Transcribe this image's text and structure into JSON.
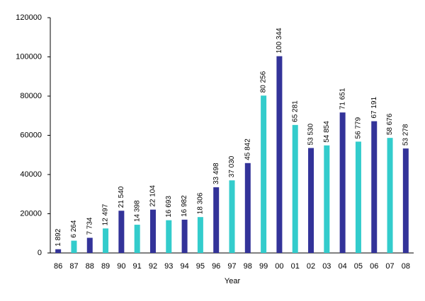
{
  "chart_data": {
    "type": "bar",
    "x_label": "Year",
    "categories": [
      "86",
      "87",
      "88",
      "89",
      "90",
      "91",
      "92",
      "93",
      "94",
      "95",
      "96",
      "97",
      "98",
      "99",
      "00",
      "01",
      "02",
      "03",
      "04",
      "05",
      "06",
      "07",
      "08"
    ],
    "values": [
      1892,
      6264,
      7734,
      12497,
      21540,
      14398,
      22104,
      16693,
      16982,
      18306,
      33498,
      37030,
      45842,
      80256,
      100344,
      65281,
      53530,
      54854,
      71651,
      56779,
      67191,
      58676,
      53278
    ],
    "value_labels": [
      "1 892",
      "6 264",
      "7 734",
      "12 497",
      "21 540",
      "14 398",
      "22 104",
      "16 693",
      "16 982",
      "18 306",
      "33 498",
      "37 030",
      "45 842",
      "80 256",
      "100 344",
      "65 281",
      "53 530",
      "54 854",
      "71 651",
      "56 779",
      "67 191",
      "58 676",
      "53 278"
    ],
    "colors": [
      "#333399",
      "#33cccc",
      "#333399",
      "#33cccc",
      "#333399",
      "#33cccc",
      "#333399",
      "#33cccc",
      "#333399",
      "#33cccc",
      "#333399",
      "#33cccc",
      "#333399",
      "#33cccc",
      "#333399",
      "#33cccc",
      "#333399",
      "#33cccc",
      "#333399",
      "#33cccc",
      "#333399",
      "#33cccc",
      "#333399"
    ],
    "ylim": [
      0,
      120000
    ],
    "yticks": [
      0,
      20000,
      40000,
      60000,
      80000,
      100000,
      120000
    ],
    "grid": false
  }
}
